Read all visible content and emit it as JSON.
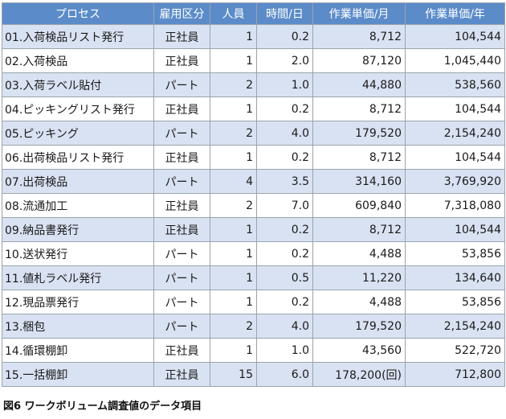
{
  "table": {
    "headers": [
      "プロセス",
      "雇用区分",
      "人員",
      "時間/日",
      "作業単価/月",
      "作業単価/年"
    ],
    "rows": [
      [
        "01.入荷検品リスト発行",
        "正社員",
        "1",
        "0.2",
        "8,712",
        "104,544"
      ],
      [
        "02.入荷検品",
        "正社員",
        "1",
        "2.0",
        "87,120",
        "1,045,440"
      ],
      [
        "03.入荷ラベル貼付",
        "パート",
        "2",
        "1.0",
        "44,880",
        "538,560"
      ],
      [
        "04.ピッキングリスト発行",
        "正社員",
        "1",
        "0.2",
        "8,712",
        "104,544"
      ],
      [
        "05.ピッキング",
        "パート",
        "2",
        "4.0",
        "179,520",
        "2,154,240"
      ],
      [
        "06.出荷検品リスト発行",
        "正社員",
        "1",
        "0.2",
        "8,712",
        "104,544"
      ],
      [
        "07.出荷検品",
        "パート",
        "4",
        "3.5",
        "314,160",
        "3,769,920"
      ],
      [
        "08.流通加工",
        "正社員",
        "2",
        "7.0",
        "609,840",
        "7,318,080"
      ],
      [
        "09.納品書発行",
        "正社員",
        "1",
        "0.2",
        "8,712",
        "104,544"
      ],
      [
        "10.送状発行",
        "パート",
        "1",
        "0.2",
        "4,488",
        "53,856"
      ],
      [
        "11.値札ラベル発行",
        "パート",
        "1",
        "0.5",
        "11,220",
        "134,640"
      ],
      [
        "12.現品票発行",
        "パート",
        "1",
        "0.2",
        "4,488",
        "53,856"
      ],
      [
        "13.梱包",
        "パート",
        "2",
        "4.0",
        "179,520",
        "2,154,240"
      ],
      [
        "14.循環棚卸",
        "正社員",
        "1",
        "1.0",
        "43,560",
        "522,720"
      ],
      [
        "15.一括棚卸",
        "正社員",
        "15",
        "6.0",
        "178,200(回)",
        "712,800"
      ]
    ]
  },
  "caption": "図6 ワークボリューム調査値のデータ項目",
  "colors": {
    "header_bg": "#5b8cc9",
    "band_bg": "#d9e2f2",
    "border": "#9aa3ad"
  }
}
